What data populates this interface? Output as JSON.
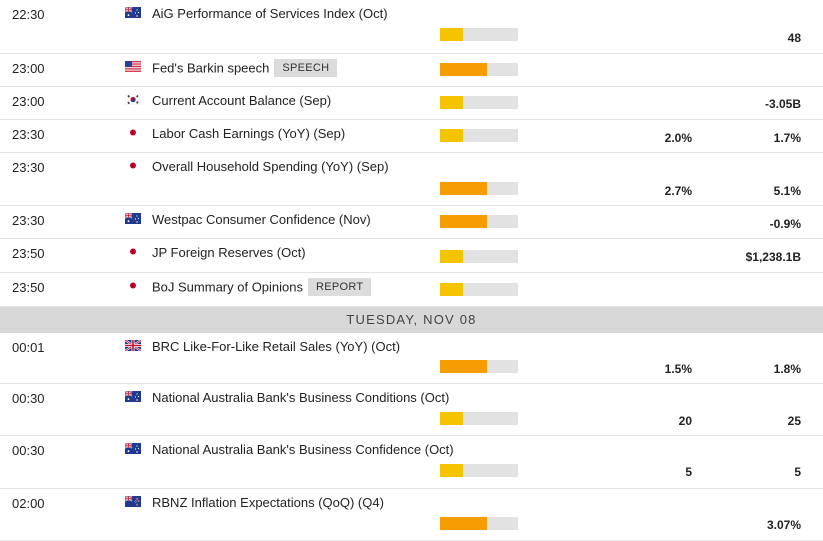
{
  "day_header": "TUESDAY, NOV 08",
  "events": [
    {
      "time": "22:30",
      "flag": "au-flag-icon",
      "name": "AiG Performance of Services Index (Oct)",
      "tag": "",
      "impact": 0.3,
      "impact_color": "#f5c400",
      "consensus": "",
      "previous": "48"
    },
    {
      "time": "23:00",
      "flag": "us-flag-icon",
      "name": "Fed's Barkin speech",
      "tag": "SPEECH",
      "impact": 0.6,
      "impact_color": "#f59c00",
      "consensus": "",
      "previous": ""
    },
    {
      "time": "23:00",
      "flag": "kr-flag-icon",
      "name": "Current Account Balance (Sep)",
      "tag": "",
      "impact": 0.3,
      "impact_color": "#f5c400",
      "consensus": "",
      "previous": "-3.05B"
    },
    {
      "time": "23:30",
      "flag": "jp-flag-icon",
      "name": "Labor Cash Earnings (YoY) (Sep)",
      "tag": "",
      "impact": 0.3,
      "impact_color": "#f5c400",
      "consensus": "2.0%",
      "previous": "1.7%"
    },
    {
      "time": "23:30",
      "flag": "jp-flag-icon",
      "name": "Overall Household Spending (YoY) (Sep)",
      "tag": "",
      "impact": 0.6,
      "impact_color": "#f59c00",
      "consensus": "2.7%",
      "previous": "5.1%"
    },
    {
      "time": "23:30",
      "flag": "au-flag-icon",
      "name": "Westpac Consumer Confidence (Nov)",
      "tag": "",
      "impact": 0.6,
      "impact_color": "#f59c00",
      "consensus": "",
      "previous": "-0.9%"
    },
    {
      "time": "23:50",
      "flag": "jp-flag-icon",
      "name": "JP Foreign Reserves (Oct)",
      "tag": "",
      "impact": 0.3,
      "impact_color": "#f5c400",
      "consensus": "",
      "previous": "$1,238.1B"
    },
    {
      "time": "23:50",
      "flag": "jp-flag-icon",
      "name": "BoJ Summary of Opinions",
      "tag": "REPORT",
      "impact": 0.3,
      "impact_color": "#f5c400",
      "consensus": "",
      "previous": ""
    },
    {
      "time": "00:01",
      "flag": "gb-flag-icon",
      "name": "BRC Like-For-Like Retail Sales (YoY) (Oct)",
      "tag": "",
      "impact": 0.6,
      "impact_color": "#f59c00",
      "consensus": "1.5%",
      "previous": "1.8%"
    },
    {
      "time": "00:30",
      "flag": "au-flag-icon",
      "name": "National Australia Bank's Business Conditions (Oct)",
      "tag": "",
      "impact": 0.3,
      "impact_color": "#f5c400",
      "consensus": "20",
      "previous": "25"
    },
    {
      "time": "00:30",
      "flag": "au-flag-icon",
      "name": "National Australia Bank's Business Confidence (Oct)",
      "tag": "",
      "impact": 0.3,
      "impact_color": "#f5c400",
      "consensus": "5",
      "previous": "5"
    },
    {
      "time": "02:00",
      "flag": "nz-flag-icon",
      "name": "RBNZ Inflation Expectations (QoQ) (Q4)",
      "tag": "",
      "impact": 0.6,
      "impact_color": "#f59c00",
      "consensus": "",
      "previous": "3.07%"
    }
  ]
}
